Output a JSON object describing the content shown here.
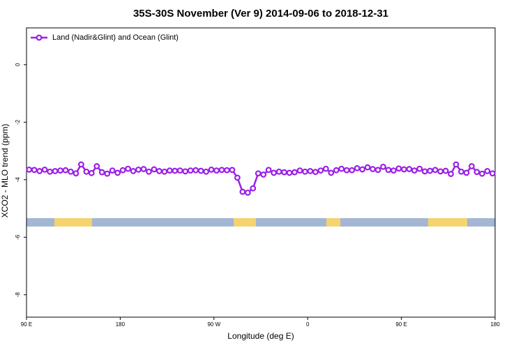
{
  "chart_data": {
    "type": "line",
    "title": "35S-30S November (Ver 9)   2014-09-06 to 2018-12-31",
    "xlabel": "Longitude (deg E)",
    "ylabel": "XCO2 - MLO trend (ppm)",
    "xlim": [
      90,
      540
    ],
    "xticks": [
      {
        "value": 90,
        "label": "90 E"
      },
      180,
      {
        "value": 270,
        "label": "90 W"
      },
      {
        "value": 360,
        "label": "0"
      },
      {
        "value": 450,
        "label": "90 E"
      },
      {
        "value": 540,
        "label": "180"
      }
    ],
    "ylim": [
      -8.78,
      1.28
    ],
    "yticks": [
      0,
      -2,
      -4,
      -6,
      -8
    ],
    "legend": "upper left",
    "x": [
      92.5,
      97.5,
      102.5,
      107.5,
      112.5,
      117.5,
      122.5,
      127.5,
      132.5,
      137.5,
      142.5,
      147.5,
      152.5,
      157.5,
      162.5,
      167.5,
      172.5,
      177.5,
      182.5,
      187.5,
      192.5,
      197.5,
      202.5,
      207.5,
      212.5,
      217.5,
      222.5,
      227.5,
      232.5,
      237.5,
      242.5,
      247.5,
      252.5,
      257.5,
      262.5,
      267.5,
      272.5,
      277.5,
      282.5,
      287.5,
      292.5,
      297.5,
      302.5,
      307.5,
      312.5,
      317.5,
      322.5,
      327.5,
      332.5,
      337.5,
      342.5,
      347.5,
      352.5,
      357.5,
      362.5,
      367.5,
      372.5,
      377.5,
      382.5,
      387.5,
      392.5,
      397.5,
      402.5,
      407.5,
      412.5,
      417.5,
      422.5,
      427.5,
      432.5,
      437.5,
      442.5,
      447.5,
      452.5,
      457.5,
      462.5,
      467.5,
      472.5,
      477.5,
      482.5,
      487.5,
      492.5,
      497.5,
      502.5,
      507.5,
      512.5,
      517.5,
      522.5,
      527.5,
      532.5,
      537.5
    ],
    "series": [
      {
        "name": "Land (Nadir&Glint) and Ocean (Glint)",
        "color": "#9b1fe8",
        "values": [
          -3.65,
          -3.66,
          -3.7,
          -3.65,
          -3.72,
          -3.7,
          -3.68,
          -3.67,
          -3.72,
          -3.78,
          -3.47,
          -3.72,
          -3.77,
          -3.53,
          -3.74,
          -3.79,
          -3.68,
          -3.76,
          -3.67,
          -3.62,
          -3.7,
          -3.65,
          -3.63,
          -3.72,
          -3.64,
          -3.7,
          -3.72,
          -3.68,
          -3.69,
          -3.68,
          -3.71,
          -3.68,
          -3.67,
          -3.69,
          -3.72,
          -3.65,
          -3.68,
          -3.66,
          -3.67,
          -3.66,
          -3.93,
          -4.42,
          -4.45,
          -4.3,
          -3.78,
          -3.82,
          -3.66,
          -3.76,
          -3.72,
          -3.74,
          -3.76,
          -3.74,
          -3.68,
          -3.72,
          -3.7,
          -3.73,
          -3.68,
          -3.62,
          -3.76,
          -3.67,
          -3.62,
          -3.67,
          -3.67,
          -3.6,
          -3.64,
          -3.57,
          -3.63,
          -3.66,
          -3.55,
          -3.66,
          -3.68,
          -3.61,
          -3.64,
          -3.63,
          -3.68,
          -3.62,
          -3.71,
          -3.69,
          -3.66,
          -3.71,
          -3.69,
          -3.8,
          -3.47,
          -3.72,
          -3.76,
          -3.53,
          -3.73,
          -3.79,
          -3.7,
          -3.78
        ]
      }
    ]
  }
}
